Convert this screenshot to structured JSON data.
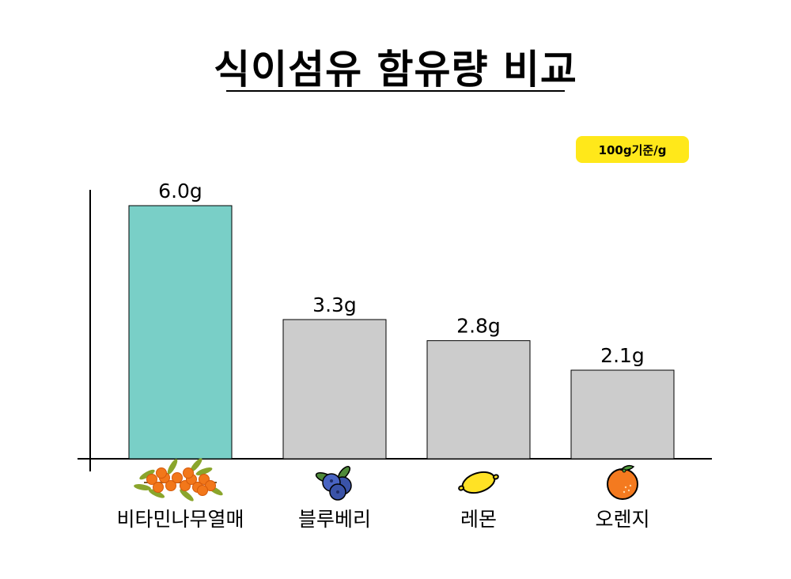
{
  "title": "식이섬유 함유량 비교",
  "badge": "100g기준/g",
  "colors": {
    "highlight_bar": "#79cfc7",
    "normal_bar": "#cccccc",
    "badge_bg": "#ffe81a",
    "axis": "#000000"
  },
  "chart_data": {
    "type": "bar",
    "title": "식이섬유 함유량 비교",
    "xlabel": "",
    "ylabel": "",
    "ylim": [
      0,
      6.3
    ],
    "grid": false,
    "categories": [
      "비타민나무열매",
      "블루베리",
      "레몬",
      "오렌지"
    ],
    "values": [
      6.0,
      3.3,
      2.8,
      2.1
    ],
    "value_labels": [
      "6.0g",
      "3.3g",
      "2.8g",
      "2.1g"
    ],
    "icons": [
      "sea-buckthorn-icon",
      "blueberry-icon",
      "lemon-icon",
      "orange-icon"
    ],
    "highlight_index": 0
  }
}
